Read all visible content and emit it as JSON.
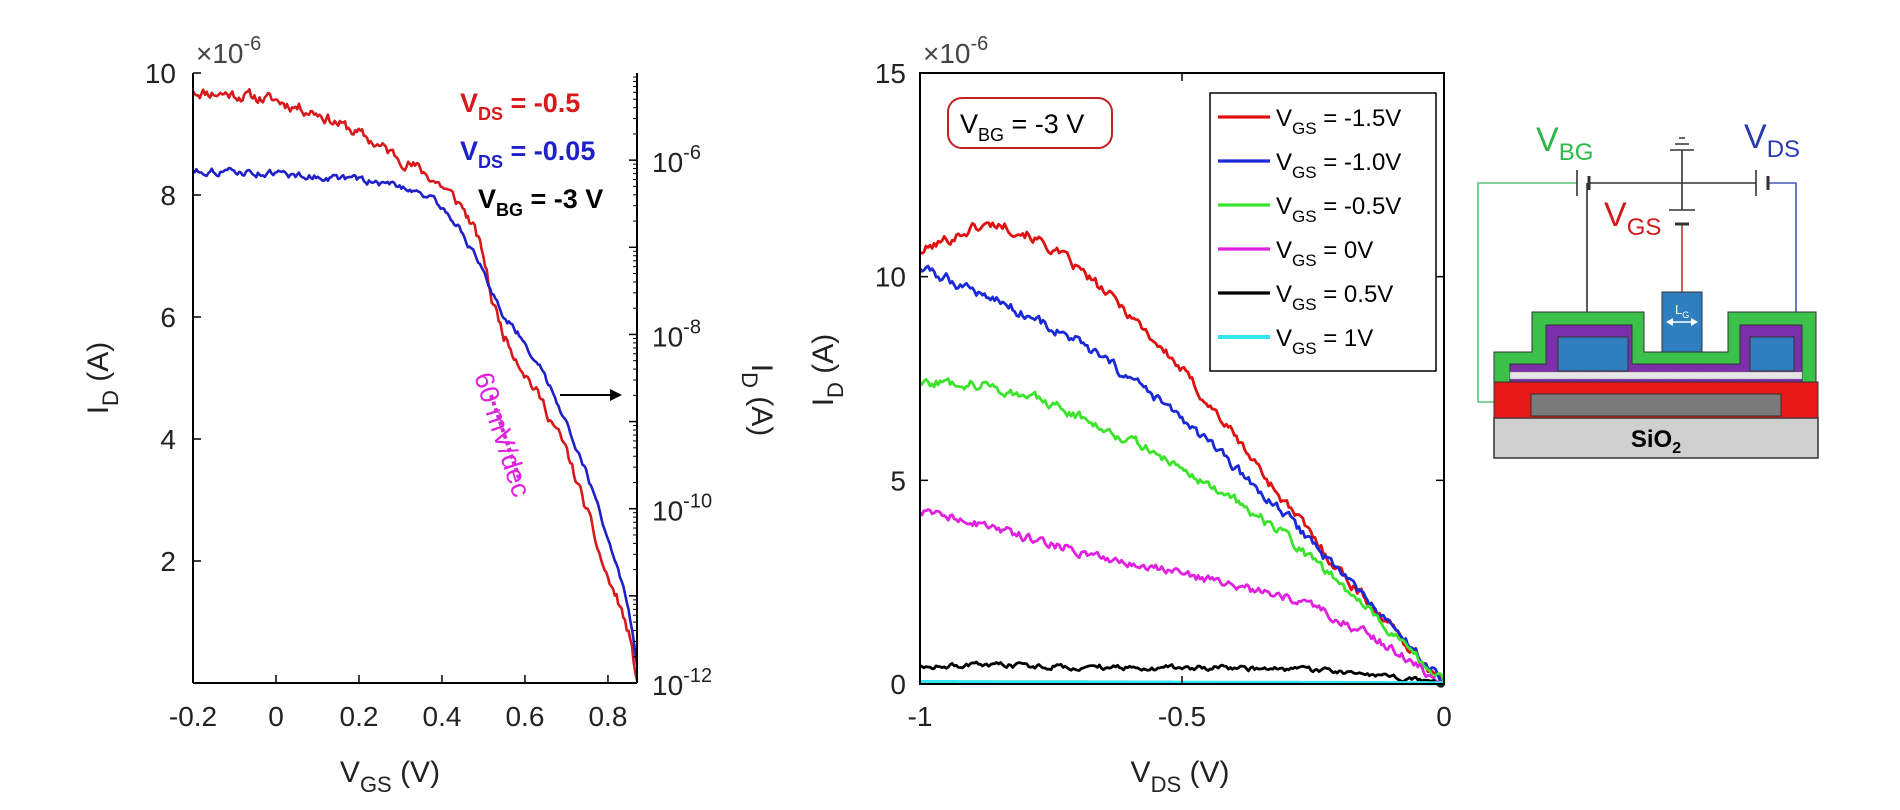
{
  "left_chart": {
    "multiplier": {
      "base": "×10",
      "exp": "-6"
    },
    "left_ticks_y": [
      "10",
      "8",
      "6",
      "4",
      "2"
    ],
    "right_ticks_y": [
      {
        "base": "10",
        "exp": "-6"
      },
      {
        "base": "10",
        "exp": "-8"
      },
      {
        "base": "10",
        "exp": "-10"
      },
      {
        "base": "10",
        "exp": "-12"
      }
    ],
    "ticks_x": [
      "-0.2",
      "0",
      "0.2",
      "0.4",
      "0.6",
      "0.8"
    ],
    "xlabel": {
      "main": "V",
      "sub": "GS",
      "suffix": " (V)"
    },
    "ylabel_left": {
      "main": "I",
      "sub": "D",
      "suffix": " (A)"
    },
    "ylabel_right": {
      "main": "I",
      "sub": "D",
      "suffix": " (A)"
    },
    "legend": [
      {
        "main": "V",
        "sub": "DS",
        "suffix": " = -0.5",
        "color": "#d7191c"
      },
      {
        "main": "V",
        "sub": "DS",
        "suffix": " = -0.05",
        "color": "#2020c8"
      },
      {
        "main": "V",
        "sub": "BG",
        "suffix": " = -3 V",
        "color": "#000000"
      }
    ],
    "slope_annotation": "60 mV/dec"
  },
  "right_chart": {
    "multiplier": {
      "base": "×10",
      "exp": "-6"
    },
    "ticks_y": [
      "15",
      "10",
      "5",
      "0"
    ],
    "ticks_x": [
      "-1",
      "-0.5",
      "0"
    ],
    "xlabel": {
      "main": "V",
      "sub": "DS",
      "suffix": " (V)"
    },
    "ylabel": {
      "main": "I",
      "sub": "D",
      "suffix": " (A)"
    },
    "bias_box": {
      "main": "V",
      "sub": "BG",
      "suffix": " = -3 V"
    },
    "legend": [
      {
        "main": "V",
        "sub": "GS",
        "suffix": " = -1.5V",
        "color": "#e01010"
      },
      {
        "main": "V",
        "sub": "GS",
        "suffix": " = -1.0V",
        "color": "#1a2ad6"
      },
      {
        "main": "V",
        "sub": "GS",
        "suffix": " = -0.5V",
        "color": "#3be42a"
      },
      {
        "main": "V",
        "sub": "GS",
        "suffix": " = 0V",
        "color": "#e021e0"
      },
      {
        "main": "V",
        "sub": "GS",
        "suffix": " = 0.5V",
        "color": "#000000"
      },
      {
        "main": "V",
        "sub": "GS",
        "suffix": " = 1V",
        "color": "#33e6ee"
      }
    ]
  },
  "schematic": {
    "v_bg": {
      "main": "V",
      "sub": "BG",
      "color": "#2cb84a"
    },
    "v_ds": {
      "main": "V",
      "sub": "DS",
      "color": "#2a3ab0"
    },
    "v_gs": {
      "main": "V",
      "sub": "GS",
      "color": "#d21c1c"
    },
    "gate_label": {
      "main": "L",
      "sub": "G"
    },
    "substrate": {
      "main": "SiO",
      "sub": "2"
    }
  },
  "chart_data": [
    {
      "type": "line",
      "title": "",
      "xlabel": "V_GS (V)",
      "ylabel": "I_D (A)",
      "y2label": "I_D (A)",
      "y_multiplier": "×10^-6",
      "xlim": [
        -0.2,
        0.87
      ],
      "ylim": [
        0,
        10
      ],
      "y2lim": [
        1e-12,
        1e-05
      ],
      "y2scale": "log",
      "grid": false,
      "legend_position": "top-right",
      "series": [
        {
          "name": "V_DS = -0.5",
          "color": "#d7191c",
          "noise": 0.1,
          "x": [
            -0.2,
            -0.1,
            0.0,
            0.1,
            0.2,
            0.25,
            0.3,
            0.35,
            0.4,
            0.45,
            0.48,
            0.5,
            0.52,
            0.55,
            0.6,
            0.65,
            0.7,
            0.75,
            0.78,
            0.8,
            0.83,
            0.85,
            0.87
          ],
          "y": [
            9.7,
            9.65,
            9.55,
            9.35,
            9.0,
            8.8,
            8.6,
            8.4,
            8.15,
            7.8,
            7.4,
            7.0,
            6.3,
            5.7,
            5.1,
            4.5,
            3.8,
            2.8,
            2.1,
            1.7,
            1.25,
            0.8,
            0.05
          ]
        },
        {
          "name": "V_DS = -0.05",
          "color": "#2020c8",
          "noise": 0.06,
          "x": [
            -0.2,
            -0.1,
            0.0,
            0.1,
            0.2,
            0.3,
            0.35,
            0.4,
            0.45,
            0.5,
            0.55,
            0.6,
            0.65,
            0.7,
            0.75,
            0.8,
            0.83,
            0.85,
            0.87
          ],
          "y": [
            8.4,
            8.38,
            8.35,
            8.3,
            8.25,
            8.15,
            8.05,
            7.8,
            7.4,
            6.7,
            6.0,
            5.6,
            5.0,
            4.3,
            3.4,
            2.4,
            1.7,
            1.2,
            0.3
          ]
        }
      ],
      "annotations": [
        "60 mV/dec",
        "V_BG = -3 V"
      ]
    },
    {
      "type": "line",
      "title": "",
      "xlabel": "V_DS (V)",
      "ylabel": "I_D (A)",
      "y_multiplier": "×10^-6",
      "xlim": [
        -1,
        0
      ],
      "ylim": [
        0,
        15
      ],
      "grid": false,
      "legend_position": "top-right",
      "series": [
        {
          "name": "V_GS = -1.5V",
          "color": "#e01010",
          "noise": 0.14,
          "x": [
            -1.0,
            -0.95,
            -0.9,
            -0.85,
            -0.8,
            -0.75,
            -0.7,
            -0.6,
            -0.5,
            -0.4,
            -0.3,
            -0.2,
            -0.1,
            0.0
          ],
          "y": [
            10.6,
            10.9,
            11.2,
            11.3,
            11.1,
            10.7,
            10.2,
            9.1,
            7.7,
            6.1,
            4.4,
            2.8,
            1.4,
            0.0
          ]
        },
        {
          "name": "V_GS = -1.0V",
          "color": "#1a2ad6",
          "noise": 0.14,
          "x": [
            -1.0,
            -0.9,
            -0.8,
            -0.7,
            -0.6,
            -0.5,
            -0.4,
            -0.3,
            -0.2,
            -0.1,
            0.0
          ],
          "y": [
            10.2,
            9.7,
            9.1,
            8.4,
            7.5,
            6.5,
            5.3,
            4.1,
            2.8,
            1.4,
            0.0
          ]
        },
        {
          "name": "V_GS = -0.5V",
          "color": "#3be42a",
          "noise": 0.13,
          "x": [
            -1.0,
            -0.9,
            -0.8,
            -0.7,
            -0.6,
            -0.5,
            -0.4,
            -0.3,
            -0.2,
            -0.1,
            0.0
          ],
          "y": [
            7.4,
            7.4,
            7.1,
            6.6,
            6.0,
            5.3,
            4.5,
            3.6,
            2.5,
            1.3,
            0.0
          ]
        },
        {
          "name": "V_GS = 0V",
          "color": "#e021e0",
          "noise": 0.12,
          "x": [
            -1.0,
            -0.9,
            -0.8,
            -0.7,
            -0.6,
            -0.5,
            -0.4,
            -0.3,
            -0.2,
            -0.1,
            0.0
          ],
          "y": [
            4.2,
            4.0,
            3.6,
            3.3,
            3.0,
            2.7,
            2.4,
            2.1,
            1.6,
            0.9,
            0.0
          ]
        },
        {
          "name": "V_GS = 0.5V",
          "color": "#000000",
          "noise": 0.07,
          "x": [
            -1.0,
            -0.8,
            -0.6,
            -0.4,
            -0.2,
            -0.1,
            0.0
          ],
          "y": [
            0.45,
            0.45,
            0.4,
            0.4,
            0.3,
            0.15,
            0.0
          ]
        },
        {
          "name": "V_GS = 1V",
          "color": "#33e6ee",
          "noise": 0.0,
          "x": [
            -1.0,
            0.0
          ],
          "y": [
            0.05,
            0.02
          ]
        }
      ],
      "annotations": [
        "V_BG = -3 V"
      ]
    }
  ]
}
